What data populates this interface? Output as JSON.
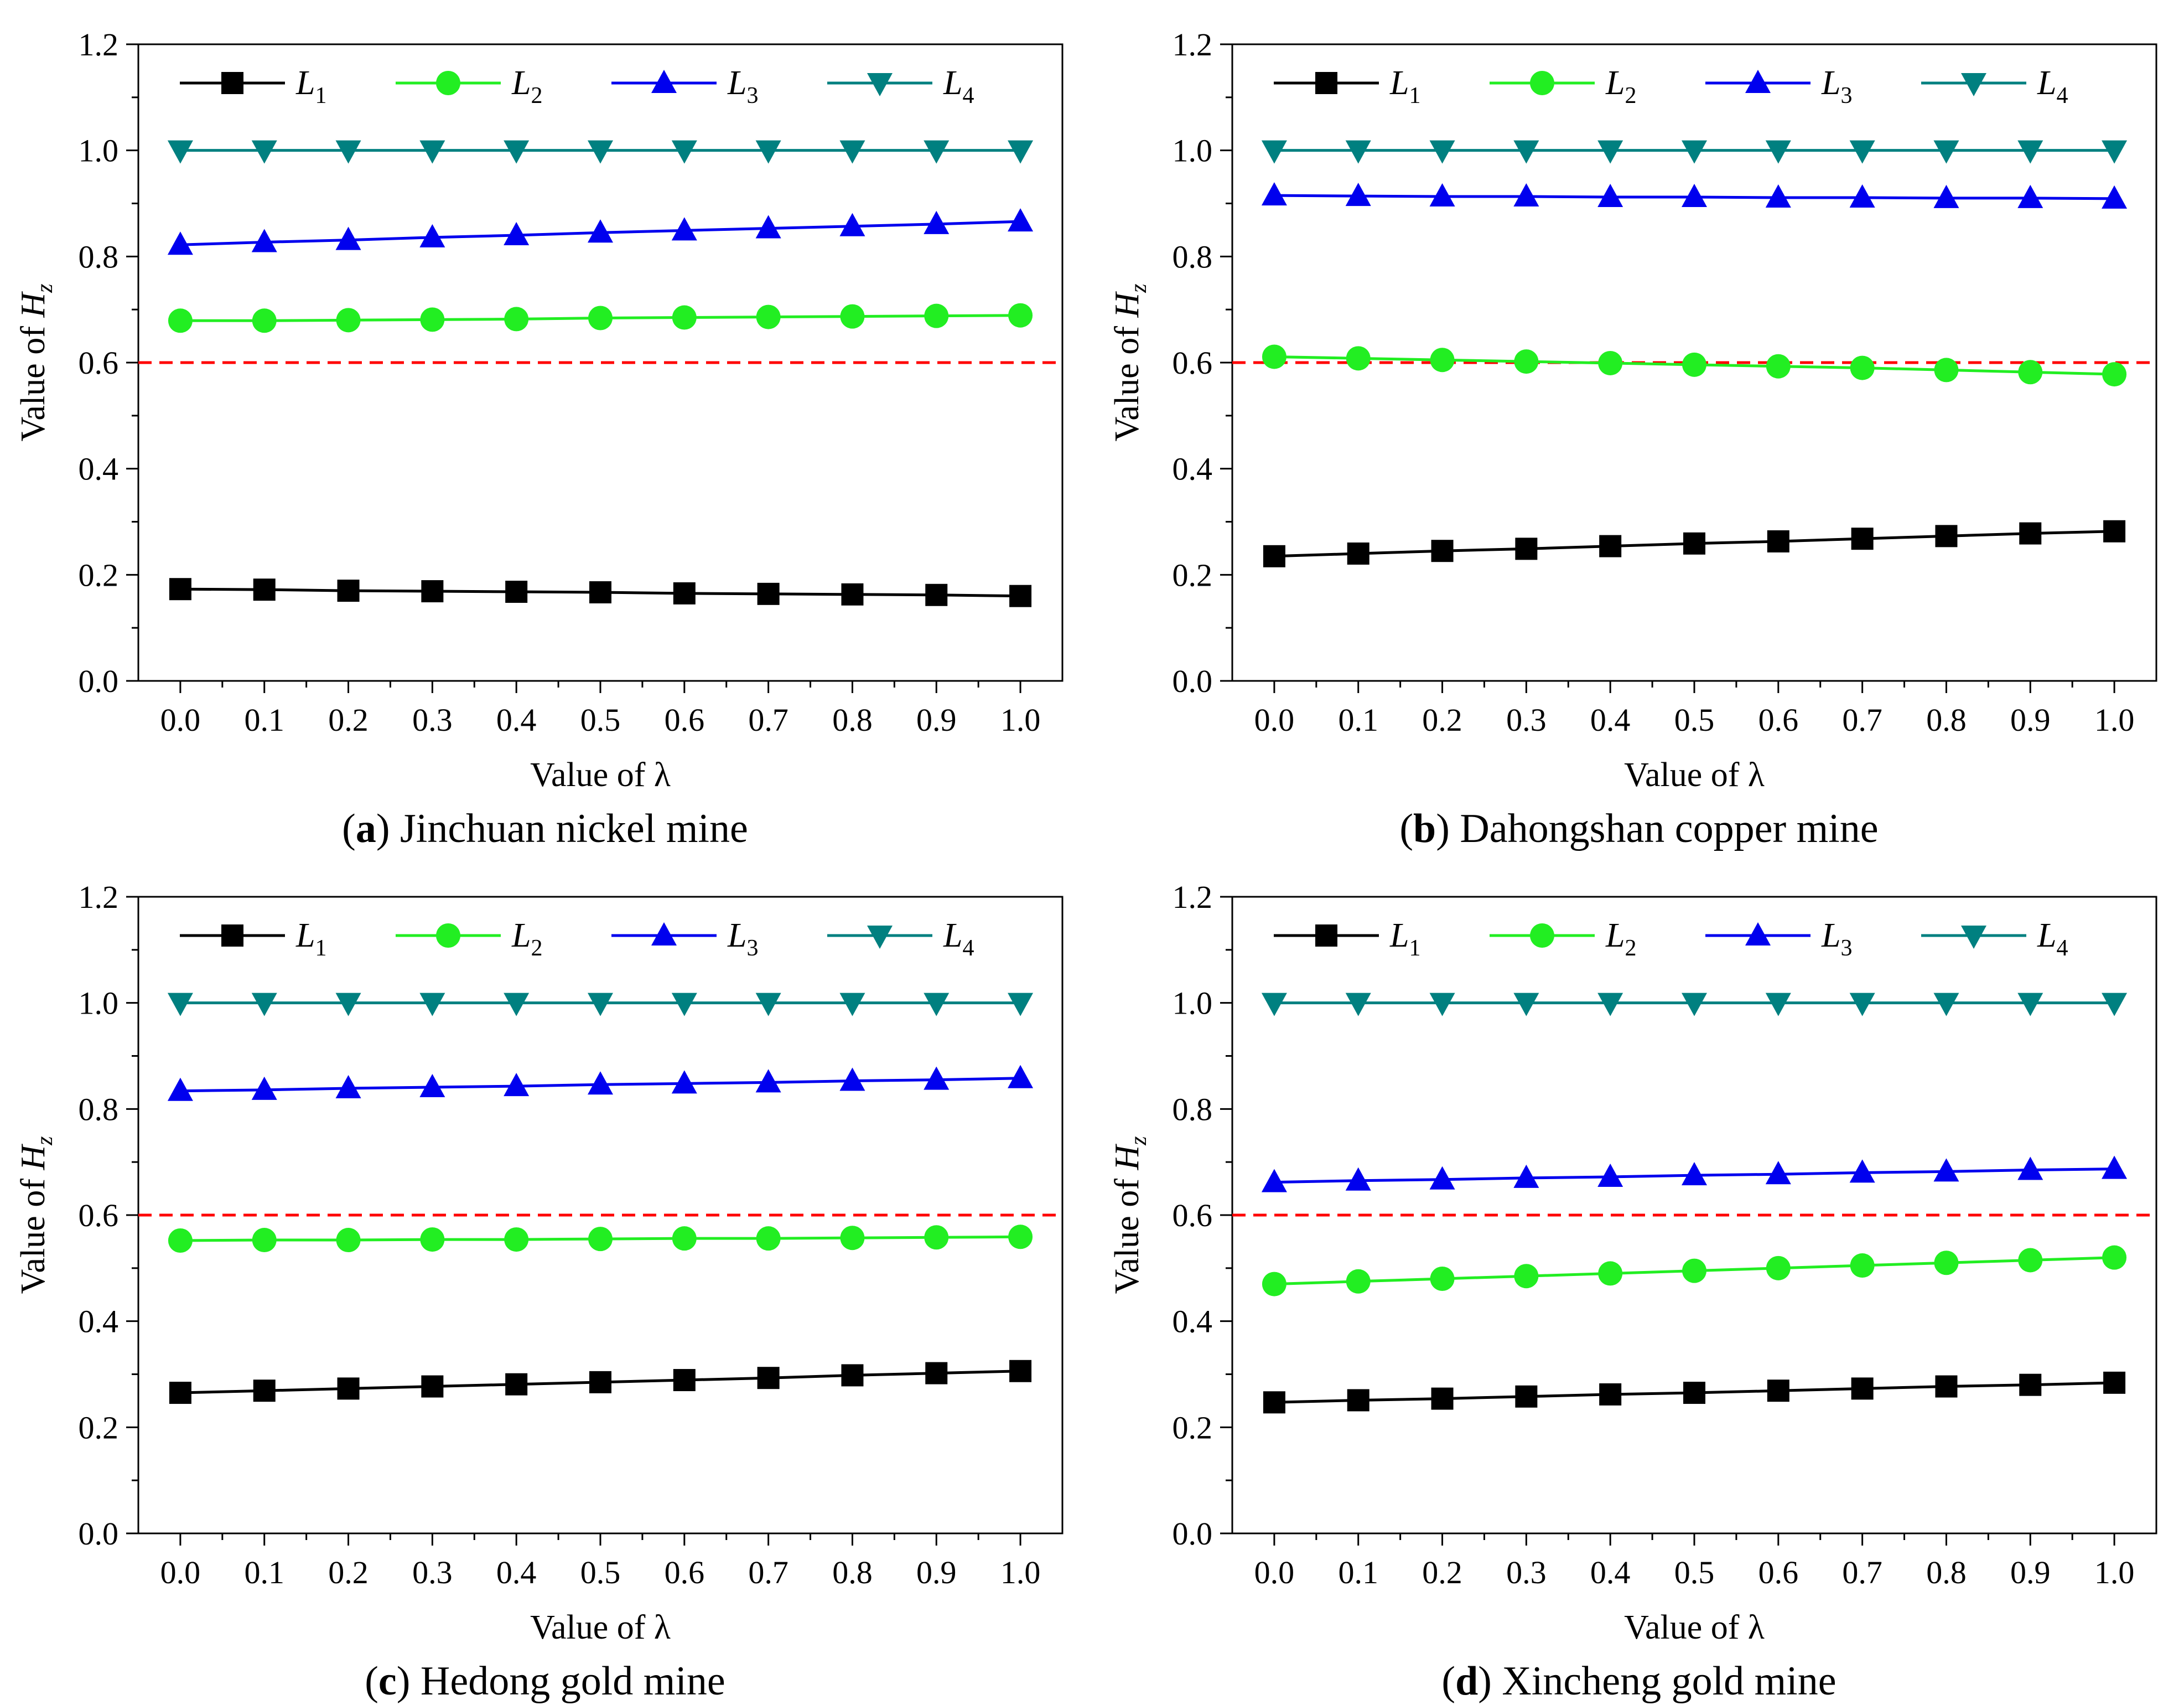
{
  "figure": {
    "colors": {
      "L1": "#000000",
      "L2": "#22ee22",
      "L3": "#0000ee",
      "L4": "#008080",
      "threshold": "#ff0000"
    },
    "legend_labels": [
      {
        "base": "L",
        "sub": "1"
      },
      {
        "base": "L",
        "sub": "2"
      },
      {
        "base": "L",
        "sub": "3"
      },
      {
        "base": "L",
        "sub": "4"
      }
    ],
    "marker_icons": [
      "square-icon",
      "circle-icon",
      "triangle-up-icon",
      "triangle-down-icon"
    ]
  },
  "chart_data": [
    {
      "type": "line",
      "panel_letter": "a",
      "caption": "Jinchuan nickel mine",
      "xlabel": "Value of λ",
      "ylabel_prefix": "Value of ",
      "ylabel_symbol": "H",
      "ylabel_sub": "z",
      "x": [
        0.0,
        0.1,
        0.2,
        0.3,
        0.4,
        0.5,
        0.6,
        0.7,
        0.8,
        0.9,
        1.0
      ],
      "xticklabels": [
        "0.0",
        "0.1",
        "0.2",
        "0.3",
        "0.4",
        "0.5",
        "0.6",
        "0.7",
        "0.8",
        "0.9",
        "1.0"
      ],
      "xlim": [
        -0.05,
        1.05
      ],
      "ylim": [
        0.0,
        1.2
      ],
      "yticks": [
        0.0,
        0.2,
        0.4,
        0.6,
        0.8,
        1.0,
        1.2
      ],
      "yticklabels": [
        "0.0",
        "0.2",
        "0.4",
        "0.6",
        "0.8",
        "1.0",
        "1.2"
      ],
      "threshold": 0.6,
      "legend_position": "top",
      "series": [
        {
          "name": "L1",
          "marker": "square",
          "values": [
            0.173,
            0.172,
            0.17,
            0.169,
            0.168,
            0.167,
            0.165,
            0.164,
            0.163,
            0.162,
            0.16
          ]
        },
        {
          "name": "L2",
          "marker": "circle",
          "values": [
            0.679,
            0.679,
            0.68,
            0.681,
            0.682,
            0.684,
            0.685,
            0.686,
            0.687,
            0.688,
            0.689
          ]
        },
        {
          "name": "L3",
          "marker": "triangle-up",
          "values": [
            0.822,
            0.827,
            0.831,
            0.836,
            0.84,
            0.845,
            0.849,
            0.853,
            0.857,
            0.861,
            0.866
          ]
        },
        {
          "name": "L4",
          "marker": "triangle-down",
          "values": [
            1.0,
            1.0,
            1.0,
            1.0,
            1.0,
            1.0,
            1.0,
            1.0,
            1.0,
            1.0,
            1.0
          ]
        }
      ]
    },
    {
      "type": "line",
      "panel_letter": "b",
      "caption": "Dahongshan copper mine",
      "xlabel": "Value of λ",
      "ylabel_prefix": "Value of ",
      "ylabel_symbol": "H",
      "ylabel_sub": "z",
      "x": [
        0.0,
        0.1,
        0.2,
        0.3,
        0.4,
        0.5,
        0.6,
        0.7,
        0.8,
        0.9,
        1.0
      ],
      "xticklabels": [
        "0.0",
        "0.1",
        "0.2",
        "0.3",
        "0.4",
        "0.5",
        "0.6",
        "0.7",
        "0.8",
        "0.9",
        "1.0"
      ],
      "xlim": [
        -0.05,
        1.05
      ],
      "ylim": [
        0.0,
        1.2
      ],
      "yticks": [
        0.0,
        0.2,
        0.4,
        0.6,
        0.8,
        1.0,
        1.2
      ],
      "yticklabels": [
        "0.0",
        "0.2",
        "0.4",
        "0.6",
        "0.8",
        "1.0",
        "1.2"
      ],
      "threshold": 0.6,
      "legend_position": "top",
      "series": [
        {
          "name": "L1",
          "marker": "square",
          "values": [
            0.235,
            0.24,
            0.245,
            0.249,
            0.254,
            0.259,
            0.263,
            0.268,
            0.273,
            0.278,
            0.282
          ]
        },
        {
          "name": "L2",
          "marker": "circle",
          "values": [
            0.611,
            0.608,
            0.605,
            0.602,
            0.599,
            0.596,
            0.593,
            0.59,
            0.586,
            0.582,
            0.578
          ]
        },
        {
          "name": "L3",
          "marker": "triangle-up",
          "values": [
            0.915,
            0.914,
            0.913,
            0.913,
            0.912,
            0.912,
            0.911,
            0.911,
            0.91,
            0.91,
            0.909
          ]
        },
        {
          "name": "L4",
          "marker": "triangle-down",
          "values": [
            1.0,
            1.0,
            1.0,
            1.0,
            1.0,
            1.0,
            1.0,
            1.0,
            1.0,
            1.0,
            1.0
          ]
        }
      ]
    },
    {
      "type": "line",
      "panel_letter": "c",
      "caption": "Hedong gold mine",
      "xlabel": "Value of λ",
      "ylabel_prefix": "Value of ",
      "ylabel_symbol": "H",
      "ylabel_sub": "z",
      "x": [
        0.0,
        0.1,
        0.2,
        0.3,
        0.4,
        0.5,
        0.6,
        0.7,
        0.8,
        0.9,
        1.0
      ],
      "xticklabels": [
        "0.0",
        "0.1",
        "0.2",
        "0.3",
        "0.4",
        "0.5",
        "0.6",
        "0.7",
        "0.8",
        "0.9",
        "1.0"
      ],
      "xlim": [
        -0.05,
        1.05
      ],
      "ylim": [
        0.0,
        1.2
      ],
      "yticks": [
        0.0,
        0.2,
        0.4,
        0.6,
        0.8,
        1.0,
        1.2
      ],
      "yticklabels": [
        "0.0",
        "0.2",
        "0.4",
        "0.6",
        "0.8",
        "1.0",
        "1.2"
      ],
      "threshold": 0.6,
      "legend_position": "top",
      "series": [
        {
          "name": "L1",
          "marker": "square",
          "values": [
            0.265,
            0.269,
            0.273,
            0.277,
            0.281,
            0.285,
            0.289,
            0.293,
            0.298,
            0.302,
            0.306
          ]
        },
        {
          "name": "L2",
          "marker": "circle",
          "values": [
            0.552,
            0.553,
            0.553,
            0.554,
            0.554,
            0.555,
            0.556,
            0.556,
            0.557,
            0.558,
            0.559
          ]
        },
        {
          "name": "L3",
          "marker": "triangle-up",
          "values": [
            0.834,
            0.836,
            0.839,
            0.841,
            0.843,
            0.846,
            0.848,
            0.85,
            0.853,
            0.855,
            0.858
          ]
        },
        {
          "name": "L4",
          "marker": "triangle-down",
          "values": [
            1.0,
            1.0,
            1.0,
            1.0,
            1.0,
            1.0,
            1.0,
            1.0,
            1.0,
            1.0,
            1.0
          ]
        }
      ]
    },
    {
      "type": "line",
      "panel_letter": "d",
      "caption": "Xincheng gold mine",
      "xlabel": "Value of λ",
      "ylabel_prefix": "Value of ",
      "ylabel_symbol": "H",
      "ylabel_sub": "z",
      "x": [
        0.0,
        0.1,
        0.2,
        0.3,
        0.4,
        0.5,
        0.6,
        0.7,
        0.8,
        0.9,
        1.0
      ],
      "xticklabels": [
        "0.0",
        "0.1",
        "0.2",
        "0.3",
        "0.4",
        "0.5",
        "0.6",
        "0.7",
        "0.8",
        "0.9",
        "1.0"
      ],
      "xlim": [
        -0.05,
        1.05
      ],
      "ylim": [
        0.0,
        1.2
      ],
      "yticks": [
        0.0,
        0.2,
        0.4,
        0.6,
        0.8,
        1.0,
        1.2
      ],
      "yticklabels": [
        "0.0",
        "0.2",
        "0.4",
        "0.6",
        "0.8",
        "1.0",
        "1.2"
      ],
      "threshold": 0.6,
      "legend_position": "top",
      "series": [
        {
          "name": "L1",
          "marker": "square",
          "values": [
            0.247,
            0.251,
            0.254,
            0.258,
            0.262,
            0.265,
            0.269,
            0.273,
            0.277,
            0.28,
            0.284
          ]
        },
        {
          "name": "L2",
          "marker": "circle",
          "values": [
            0.47,
            0.475,
            0.48,
            0.485,
            0.49,
            0.495,
            0.5,
            0.505,
            0.51,
            0.515,
            0.52
          ]
        },
        {
          "name": "L3",
          "marker": "triangle-up",
          "values": [
            0.662,
            0.665,
            0.667,
            0.67,
            0.672,
            0.675,
            0.677,
            0.68,
            0.682,
            0.685,
            0.687
          ]
        },
        {
          "name": "L4",
          "marker": "triangle-down",
          "values": [
            1.0,
            1.0,
            1.0,
            1.0,
            1.0,
            1.0,
            1.0,
            1.0,
            1.0,
            1.0,
            1.0
          ]
        }
      ]
    }
  ]
}
